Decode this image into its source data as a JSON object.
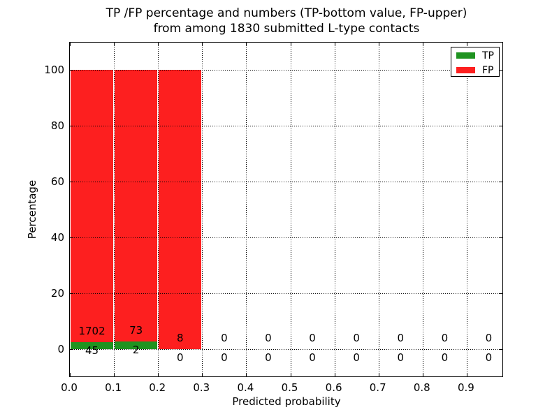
{
  "figure": {
    "title_line1": "TP /FP percentage and numbers (TP-bottom value, FP-upper)",
    "title_line2": "from among 1830 submitted L-type contacts",
    "xlabel": "Predicted probability",
    "ylabel": "Percentage"
  },
  "legend": {
    "position": "upper right",
    "items": [
      {
        "label": "TP",
        "color": "#1f9320"
      },
      {
        "label": "FP",
        "color": "#fd1f1f"
      }
    ]
  },
  "colors": {
    "tp_green": "#1f9320",
    "fp_red": "#fd1f1f",
    "bar_edge": "#ffffff",
    "axis": "#000000",
    "background": "#ffffff"
  },
  "chart_data": {
    "type": "bar",
    "stacked": true,
    "title": "TP /FP percentage and numbers (TP-bottom value, FP-upper) from among 1830 submitted L-type contacts",
    "xlabel": "Predicted probability",
    "ylabel": "Percentage",
    "xlim": [
      0.0,
      0.985
    ],
    "ylim": [
      -10,
      110
    ],
    "yticks": [
      0,
      20,
      40,
      60,
      80,
      100
    ],
    "xtick_labels": [
      "0.0",
      "0.1",
      "0.2",
      "0.3",
      "0.4",
      "0.5",
      "0.6",
      "0.7",
      "0.8",
      "0.9"
    ],
    "grid": "dotted, both axes",
    "legend_position": "upper right",
    "bin_width": 0.1,
    "total_contacts": 1830,
    "series": [
      {
        "name": "TP",
        "color": "#1f9320",
        "counts": [
          45,
          2,
          0,
          0,
          0,
          0,
          0,
          0,
          0,
          0
        ]
      },
      {
        "name": "FP",
        "color": "#fd1f1f",
        "counts": [
          1702,
          73,
          8,
          0,
          0,
          0,
          0,
          0,
          0,
          0
        ]
      }
    ],
    "bins": [
      {
        "range": [
          0.0,
          0.1
        ],
        "tp_count": 45,
        "fp_count": 1702,
        "tp_pct": 2.58,
        "fp_pct": 97.42
      },
      {
        "range": [
          0.1,
          0.2
        ],
        "tp_count": 2,
        "fp_count": 73,
        "tp_pct": 2.67,
        "fp_pct": 97.33
      },
      {
        "range": [
          0.2,
          0.3
        ],
        "tp_count": 0,
        "fp_count": 8,
        "tp_pct": 0,
        "fp_pct": 100
      },
      {
        "range": [
          0.3,
          0.4
        ],
        "tp_count": 0,
        "fp_count": 0,
        "tp_pct": 0,
        "fp_pct": 0
      },
      {
        "range": [
          0.4,
          0.5
        ],
        "tp_count": 0,
        "fp_count": 0,
        "tp_pct": 0,
        "fp_pct": 0
      },
      {
        "range": [
          0.5,
          0.6
        ],
        "tp_count": 0,
        "fp_count": 0,
        "tp_pct": 0,
        "fp_pct": 0
      },
      {
        "range": [
          0.6,
          0.7
        ],
        "tp_count": 0,
        "fp_count": 0,
        "tp_pct": 0,
        "fp_pct": 0
      },
      {
        "range": [
          0.7,
          0.8
        ],
        "tp_count": 0,
        "fp_count": 0,
        "tp_pct": 0,
        "fp_pct": 0
      },
      {
        "range": [
          0.8,
          0.9
        ],
        "tp_count": 0,
        "fp_count": 0,
        "tp_pct": 0,
        "fp_pct": 0
      },
      {
        "range": [
          0.9,
          1.0
        ],
        "tp_count": 0,
        "fp_count": 0,
        "tp_pct": 0,
        "fp_pct": 0
      }
    ]
  }
}
